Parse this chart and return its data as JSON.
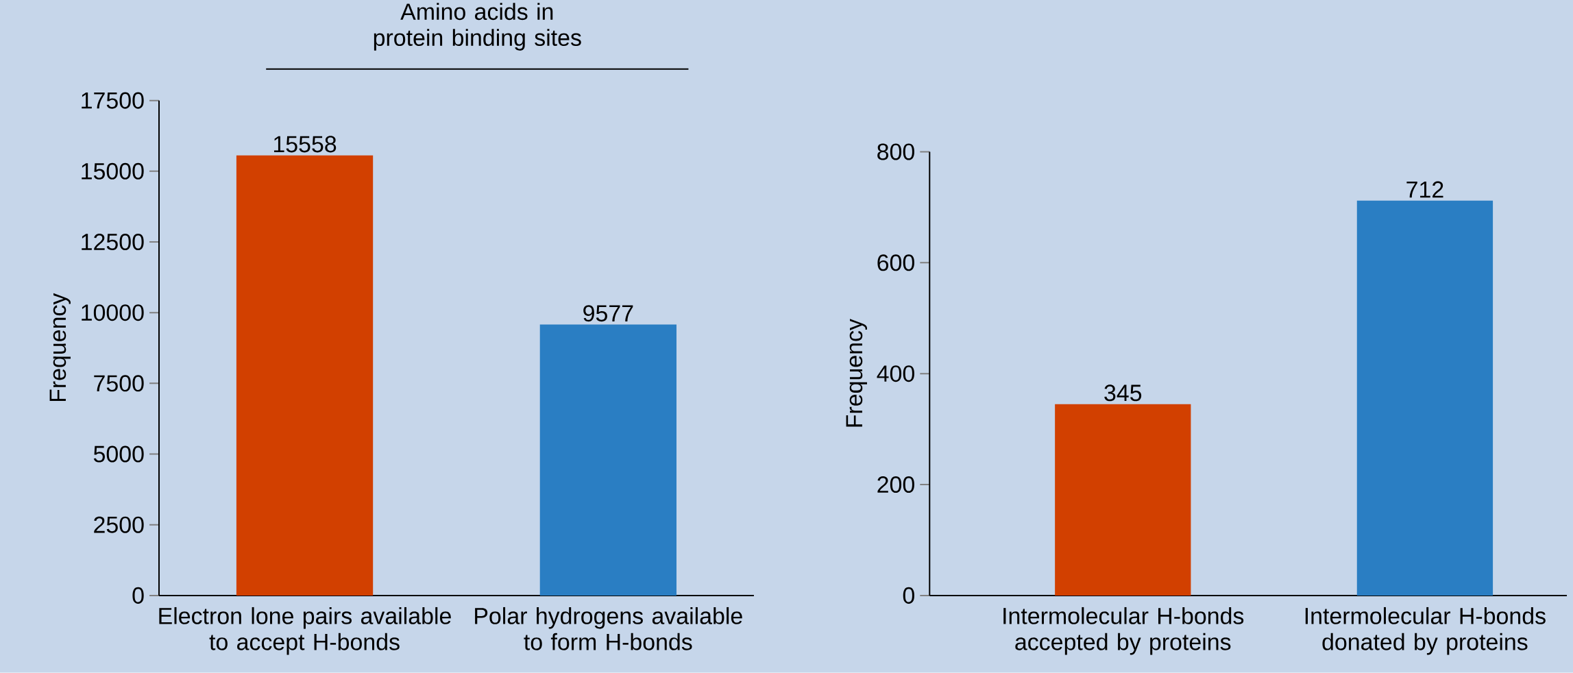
{
  "chart_data": [
    {
      "type": "bar",
      "title": "Amino acids in protein binding sites",
      "ylabel": "Frequency",
      "categories": [
        "Electron lone pairs available to accept H-bonds",
        "Polar hydrogens available to form H-bonds"
      ],
      "values": [
        15558,
        9577
      ],
      "colors": [
        "#d24000",
        "#2a7ec3"
      ],
      "ylim": [
        0,
        17500
      ],
      "yticks": [
        0,
        2500,
        5000,
        7500,
        10000,
        12500,
        15000,
        17500
      ],
      "data_labels": true
    },
    {
      "type": "bar",
      "ylabel": "Frequency",
      "categories": [
        "Intermolecular H-bonds accepted by proteins",
        "Intermolecular H-bonds donated by proteins"
      ],
      "values": [
        345,
        712
      ],
      "colors": [
        "#d24000",
        "#2a7ec3"
      ],
      "ylim": [
        0,
        800
      ],
      "yticks": [
        0,
        200,
        400,
        600,
        800
      ],
      "data_labels": true
    }
  ]
}
